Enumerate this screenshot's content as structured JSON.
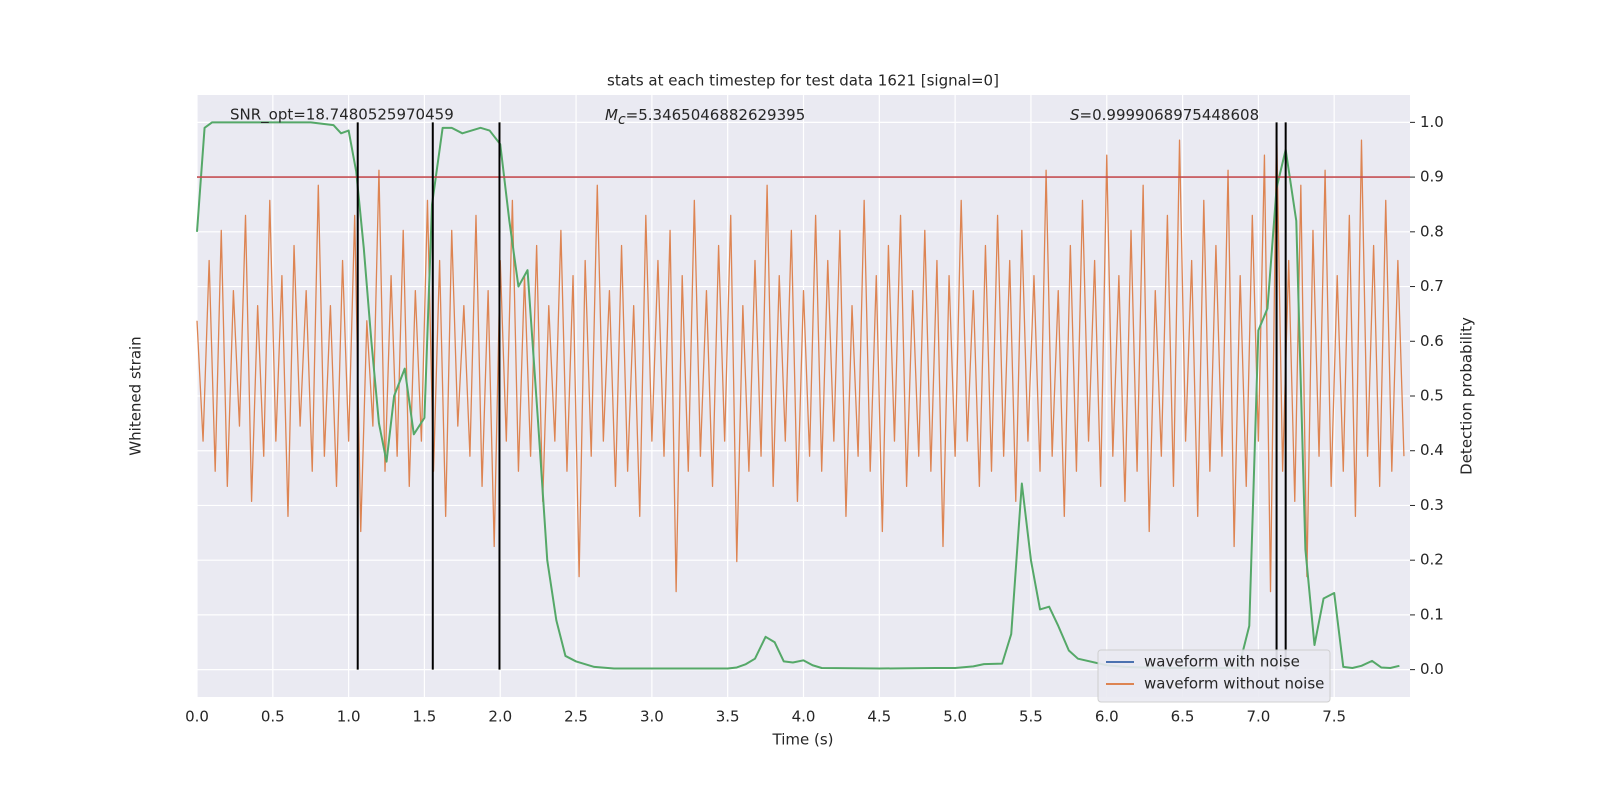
{
  "chart_data": {
    "type": "line",
    "title": "stats at each timestep for test data 1621 [signal=0]",
    "xlabel": "Time (s)",
    "ylabel": "Whitened strain",
    "y2label": "Detection probability",
    "annotations": [
      {
        "text": "SNR_opt=18.7480525970459"
      },
      {
        "symbol": "M",
        "subscript": "c",
        "text": "=5.3465046882629395"
      },
      {
        "symbol": "S",
        "text": "=0.9999068975448608"
      }
    ],
    "xlim": [
      0,
      8
    ],
    "xticks": [
      {
        "value": 0,
        "label": "0.0"
      },
      0.5,
      {
        "value": 1,
        "label": "1.0"
      },
      1.5,
      {
        "value": 2,
        "label": "2.0"
      },
      2.5,
      {
        "value": 3,
        "label": "3.0"
      },
      3.5,
      {
        "value": 4,
        "label": "4.0"
      },
      4.5,
      {
        "value": 5,
        "label": "5.0"
      },
      5.5,
      {
        "value": 6,
        "label": "6.0"
      },
      6.5,
      {
        "value": 7,
        "label": "7.0"
      },
      7.5
    ],
    "ylim": [
      -2,
      2
    ],
    "y2lim": [
      -0.05,
      1.05
    ],
    "y2ticks": [
      {
        "value": 0,
        "label": "0.0"
      },
      0.1,
      0.2,
      0.3,
      0.4,
      0.5,
      0.6,
      0.7,
      0.8,
      0.9,
      {
        "value": 1,
        "label": "1.0"
      }
    ],
    "grid": true,
    "threshold": {
      "value": 0.9,
      "color": "#c44e52"
    },
    "crossings": {
      "color": "#000000",
      "x": [
        1.06,
        1.555,
        1.995,
        7.12,
        7.18
      ]
    },
    "legend": {
      "position": "lower right",
      "entries": [
        {
          "name": "waveform with noise",
          "color": "#4c72b0"
        },
        {
          "name": "waveform without noise",
          "color": "#dd8452"
        }
      ]
    },
    "strain": {
      "color": "#dd8452",
      "x": [
        0,
        0.04,
        0.08,
        0.12,
        0.16,
        0.2,
        0.24,
        0.28,
        0.32,
        0.36,
        0.4,
        0.44,
        0.48,
        0.52,
        0.56,
        0.6,
        0.64,
        0.68,
        0.72,
        0.76,
        0.8,
        0.84,
        0.88,
        0.92,
        0.96,
        1,
        1.04,
        1.08,
        1.12,
        1.16,
        1.2,
        1.24,
        1.28,
        1.32,
        1.36,
        1.4,
        1.44,
        1.48,
        1.52,
        1.56,
        1.6,
        1.64,
        1.68,
        1.72,
        1.76,
        1.8,
        1.84,
        1.88,
        1.92,
        1.96,
        2,
        2.04,
        2.08,
        2.12,
        2.16,
        2.2,
        2.24,
        2.28,
        2.32,
        2.36,
        2.4,
        2.44,
        2.48,
        2.52,
        2.56,
        2.6,
        2.64,
        2.68,
        2.72,
        2.76,
        2.8,
        2.84,
        2.88,
        2.92,
        2.96,
        3,
        3.04,
        3.08,
        3.12,
        3.16,
        3.2,
        3.24,
        3.28,
        3.32,
        3.36,
        3.4,
        3.44,
        3.48,
        3.52,
        3.56,
        3.6,
        3.64,
        3.68,
        3.72,
        3.76,
        3.8,
        3.84,
        3.88,
        3.92,
        3.96,
        4,
        4.04,
        4.08,
        4.12,
        4.16,
        4.2,
        4.24,
        4.28,
        4.32,
        4.36,
        4.4,
        4.44,
        4.48,
        4.52,
        4.56,
        4.6,
        4.64,
        4.68,
        4.72,
        4.76,
        4.8,
        4.84,
        4.88,
        4.92,
        4.96,
        5,
        5.04,
        5.08,
        5.12,
        5.16,
        5.2,
        5.24,
        5.28,
        5.32,
        5.36,
        5.4,
        5.44,
        5.48,
        5.52,
        5.56,
        5.6,
        5.64,
        5.68,
        5.72,
        5.76,
        5.8,
        5.84,
        5.88,
        5.92,
        5.96,
        6,
        6.04,
        6.08,
        6.12,
        6.16,
        6.2,
        6.24,
        6.28,
        6.32,
        6.36,
        6.4,
        6.44,
        6.48,
        6.52,
        6.56,
        6.6,
        6.64,
        6.68,
        6.72,
        6.76,
        6.8,
        6.84,
        6.88,
        6.92,
        6.96,
        7,
        7.04,
        7.08,
        7.12,
        7.16,
        7.2,
        7.24,
        7.28,
        7.32,
        7.36,
        7.4,
        7.44,
        7.48,
        7.52,
        7.56,
        7.6,
        7.64,
        7.68,
        7.72,
        7.76,
        7.8,
        7.84,
        7.88,
        7.92,
        7.96
      ],
      "values": [
        0.5,
        -0.3,
        0.9,
        -0.5,
        1.1,
        -0.6,
        0.7,
        -0.2,
        1.2,
        -0.7,
        0.6,
        -0.4,
        1.3,
        -0.3,
        0.8,
        -0.8,
        1.0,
        -0.2,
        0.7,
        -0.5,
        1.4,
        -0.4,
        0.6,
        -0.6,
        0.9,
        -0.3,
        1.2,
        -0.9,
        0.5,
        -0.2,
        1.5,
        -0.5,
        0.8,
        -0.4,
        1.1,
        -0.6,
        0.7,
        -0.3,
        1.3,
        -0.5,
        0.9,
        -0.8,
        1.1,
        -0.2,
        0.6,
        -0.4,
        1.2,
        -0.6,
        0.7,
        -1.0,
        0.9,
        -0.3,
        1.3,
        -0.5,
        0.8,
        -0.4,
        1.0,
        -0.7,
        0.6,
        -0.3,
        1.1,
        -0.5,
        0.8,
        -1.2,
        0.9,
        -0.4,
        1.4,
        -0.3,
        0.7,
        -0.6,
        1.0,
        -0.5,
        0.6,
        -0.8,
        1.2,
        -0.3,
        0.9,
        -0.4,
        1.1,
        -1.3,
        0.8,
        -0.5,
        1.3,
        -0.4,
        0.7,
        -0.6,
        1.0,
        -0.3,
        1.2,
        -1.1,
        0.6,
        -0.5,
        0.9,
        -0.4,
        1.4,
        -0.6,
        0.8,
        -0.3,
        1.1,
        -0.7,
        0.7,
        -0.4,
        1.2,
        -0.5,
        0.9,
        -0.3,
        1.1,
        -0.8,
        0.6,
        -0.4,
        1.3,
        -0.5,
        0.8,
        -0.9,
        1.0,
        -0.3,
        1.2,
        -0.6,
        0.7,
        -0.4,
        1.1,
        -0.5,
        0.9,
        -1.0,
        0.8,
        -0.4,
        1.3,
        -0.3,
        0.7,
        -0.6,
        1.0,
        -0.5,
        1.2,
        -0.4,
        0.9,
        -0.7,
        1.1,
        -0.3,
        0.8,
        -0.5,
        1.5,
        -0.4,
        0.7,
        -0.8,
        1.0,
        -0.5,
        1.3,
        -0.3,
        0.9,
        -0.6,
        1.6,
        -0.4,
        0.8,
        -0.7,
        1.1,
        -0.5,
        1.4,
        -0.9,
        0.7,
        -0.4,
        1.2,
        -0.6,
        1.7,
        -0.3,
        0.9,
        -0.8,
        1.3,
        -0.5,
        1.0,
        -0.4,
        1.5,
        -1.0,
        0.8,
        -0.6,
        1.2,
        -0.3,
        1.6,
        -1.3,
        1.8,
        -0.5,
        0.9,
        -0.7,
        1.4,
        -1.2,
        1.1,
        -0.4,
        1.5,
        -0.6,
        0.8,
        -0.5,
        1.2,
        -0.8,
        1.7,
        -0.4,
        1.0,
        -0.6,
        1.3,
        -0.5,
        0.9,
        -0.4
      ]
    },
    "probability": {
      "color": "#55a868",
      "axis": "y2",
      "x": [
        0,
        0.05,
        0.1,
        0.5,
        0.75,
        0.9,
        0.95,
        1.0,
        1.05,
        1.1,
        1.15,
        1.2,
        1.25,
        1.3,
        1.37,
        1.43,
        1.5,
        1.55,
        1.62,
        1.68,
        1.75,
        1.87,
        1.93,
        2.0,
        2.06,
        2.12,
        2.18,
        2.25,
        2.31,
        2.37,
        2.43,
        2.5,
        2.62,
        2.75,
        3.5,
        3.56,
        3.62,
        3.68,
        3.75,
        3.81,
        3.87,
        3.93,
        4.0,
        4.06,
        4.12,
        4.5,
        4.87,
        5.0,
        5.12,
        5.19,
        5.31,
        5.37,
        5.44,
        5.5,
        5.56,
        5.62,
        5.68,
        5.75,
        5.81,
        6.0,
        6.12,
        6.37,
        6.87,
        6.94,
        7.0,
        7.06,
        7.12,
        7.18,
        7.25,
        7.31,
        7.37,
        7.43,
        7.5,
        7.56,
        7.62,
        7.68,
        7.75,
        7.81,
        7.87,
        7.93
      ],
      "values": [
        0.8,
        0.99,
        1.0,
        1.0,
        1.0,
        0.995,
        0.98,
        0.985,
        0.91,
        0.77,
        0.6,
        0.45,
        0.38,
        0.5,
        0.55,
        0.43,
        0.46,
        0.85,
        0.99,
        0.99,
        0.98,
        0.99,
        0.985,
        0.96,
        0.82,
        0.7,
        0.73,
        0.45,
        0.2,
        0.09,
        0.025,
        0.015,
        0.005,
        0.002,
        0.002,
        0.004,
        0.01,
        0.02,
        0.06,
        0.05,
        0.015,
        0.013,
        0.017,
        0.008,
        0.003,
        0.002,
        0.003,
        0.003,
        0.006,
        0.01,
        0.011,
        0.065,
        0.34,
        0.2,
        0.11,
        0.115,
        0.08,
        0.035,
        0.02,
        0.008,
        0.005,
        0.003,
        0.003,
        0.08,
        0.62,
        0.66,
        0.88,
        0.95,
        0.82,
        0.22,
        0.045,
        0.13,
        0.14,
        0.005,
        0.003,
        0.007,
        0.016,
        0.004,
        0.003,
        0.007
      ]
    }
  }
}
